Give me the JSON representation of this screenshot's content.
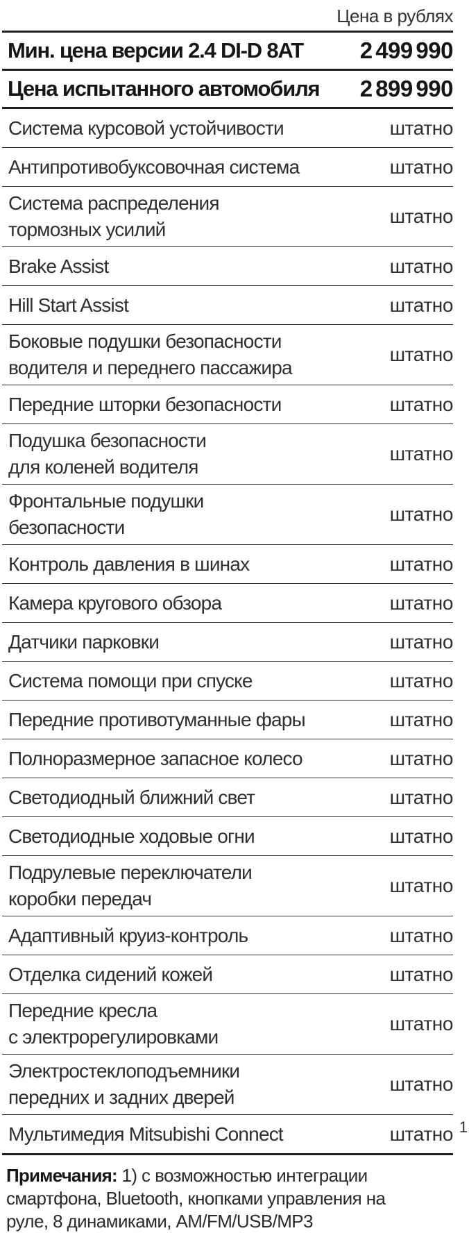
{
  "header": {
    "price_unit_label": "Цена в рублях"
  },
  "price_rows": [
    {
      "label": "Мин. цена версии 2.4 DI-D 8AT",
      "value": "2 499 990"
    },
    {
      "label": "Цена испытанного автомобиля",
      "value": "2 899 990"
    }
  ],
  "features": [
    {
      "label": "Система курсовой устойчивости",
      "value": "штатно"
    },
    {
      "label": "Антипротивобуксовочная система",
      "value": "штатно"
    },
    {
      "label": "Система распределения\nтормозных усилий",
      "value": "штатно"
    },
    {
      "label": "Brake Assist",
      "value": "штатно"
    },
    {
      "label": "Hill Start Assist",
      "value": "штатно"
    },
    {
      "label": "Боковые подушки безопасности\nводителя и переднего пассажира",
      "value": "штатно"
    },
    {
      "label": "Передние шторки безопасности",
      "value": "штатно"
    },
    {
      "label": "Подушка безопасности\nдля коленей водителя",
      "value": "штатно"
    },
    {
      "label": "Фронтальные подушки\nбезопасности",
      "value": "штатно"
    },
    {
      "label": "Контроль давления в шинах",
      "value": "штатно"
    },
    {
      "label": "Камера кругового обзора",
      "value": "штатно"
    },
    {
      "label": "Датчики парковки",
      "value": "штатно"
    },
    {
      "label": "Система помощи при спуске",
      "value": "штатно"
    },
    {
      "label": "Передние противотуманные фары",
      "value": "штатно"
    },
    {
      "label": "Полноразмерное запасное колесо",
      "value": "штатно"
    },
    {
      "label": "Светодиодный ближний свет",
      "value": "штатно"
    },
    {
      "label": "Светодиодные ходовые огни",
      "value": "штатно"
    },
    {
      "label": "Подрулевые переключатели\nкоробки передач",
      "value": "штатно"
    },
    {
      "label": "Адаптивный круиз-контроль",
      "value": "штатно"
    },
    {
      "label": "Отделка сидений кожей",
      "value": "штатно"
    },
    {
      "label": "Передние кресла\nс электрорегулировками",
      "value": "штатно"
    },
    {
      "label": "Электростеклоподъемники\nпередних и задних дверей",
      "value": "штатно"
    },
    {
      "label": "Мультимедия Mitsubishi Connect",
      "value": "штатно",
      "footnote": "1"
    }
  ],
  "notes": {
    "title": "Примечания:",
    "body": "1) с возможностью интеграции смартфона, Bluetooth, кнопками управления на руле, 8 динамиками, AM/FM/USB/MP3"
  },
  "colors": {
    "text": "#2e2d2b",
    "bold_text": "#171614",
    "rule": "#20201e",
    "background": "#ffffff"
  }
}
